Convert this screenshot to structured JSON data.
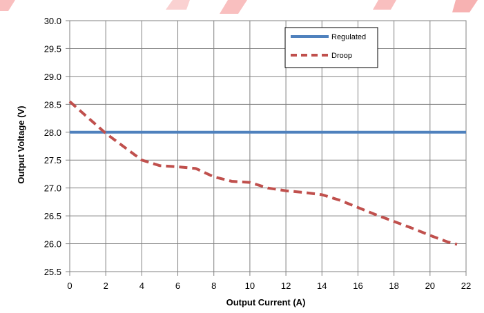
{
  "chart_data": {
    "type": "line",
    "xlabel": "Output Current (A)",
    "ylabel": "Output Voltage (V)",
    "xlim": [
      0,
      22
    ],
    "ylim": [
      25.5,
      30.0
    ],
    "xticks": [
      0,
      2,
      4,
      6,
      8,
      10,
      12,
      14,
      16,
      18,
      20,
      22
    ],
    "yticks": [
      25.5,
      26.0,
      26.5,
      27.0,
      27.5,
      28.0,
      28.5,
      29.0,
      29.5,
      30.0
    ],
    "xtick_labels": [
      "0",
      "2",
      "4",
      "6",
      "8",
      "10",
      "12",
      "14",
      "16",
      "18",
      "20",
      "22"
    ],
    "ytick_labels": [
      "25.5",
      "26.0",
      "26.5",
      "27.0",
      "27.5",
      "28.0",
      "28.5",
      "29.0",
      "29.5",
      "30.0"
    ],
    "grid": true,
    "legend_position": "top-right",
    "series": [
      {
        "name": "Regulated",
        "style": "solid",
        "color": "#4F81BD",
        "x": [
          0,
          22
        ],
        "y": [
          28.0,
          28.0
        ]
      },
      {
        "name": "Droop",
        "style": "dashed",
        "color": "#C0504D",
        "x": [
          0,
          2,
          4,
          5,
          6,
          7,
          8,
          9,
          10,
          11,
          12,
          13,
          14,
          15,
          16,
          17,
          18,
          19,
          20,
          21,
          21.5
        ],
        "y": [
          28.55,
          27.98,
          27.5,
          27.4,
          27.38,
          27.35,
          27.2,
          27.12,
          27.1,
          27.0,
          26.95,
          26.92,
          26.88,
          26.78,
          26.65,
          26.52,
          26.4,
          26.28,
          26.15,
          26.03,
          25.99
        ]
      }
    ]
  },
  "colors": {
    "background": "#ffffff",
    "grid": "#808080",
    "decor_stripe": "#e60000"
  }
}
